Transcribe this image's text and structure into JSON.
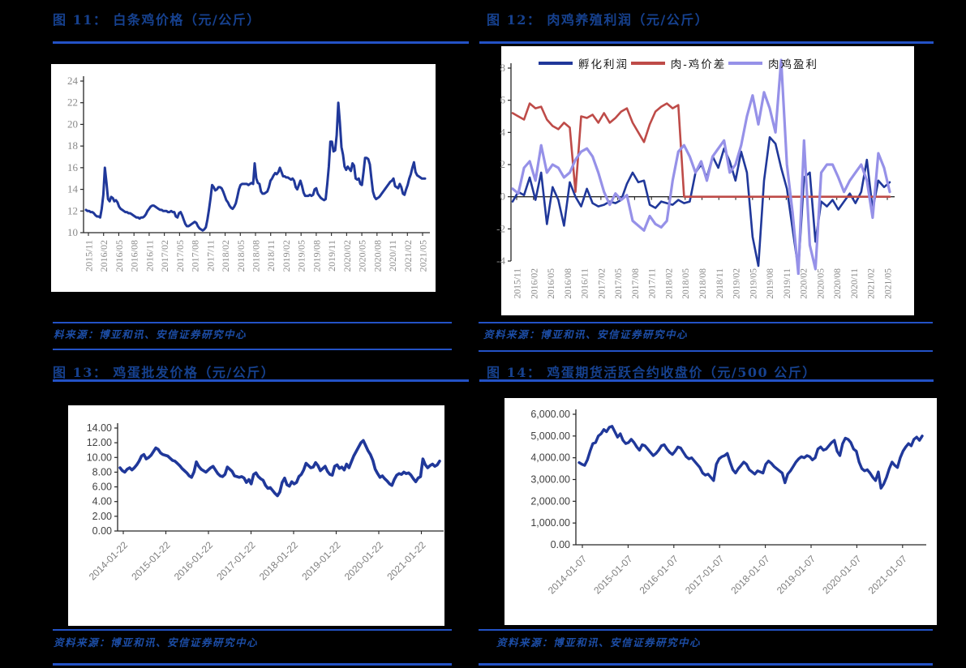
{
  "page": {
    "background": "#000000"
  },
  "colors": {
    "rule_blue": "#2352c6",
    "title_blue": "#16418f",
    "source_blue": "#1c4da6",
    "line_navy": "#20389A",
    "line_red": "#BE4B48",
    "line_purple": "#9691E8",
    "axis_line": "#262626",
    "serif_label_gray": "#8a8a8a",
    "sans_label_dark": "#404040",
    "sans_label_gray": "#7f7f7f"
  },
  "figures": [
    {
      "title": "图 11： 白条鸡价格（元/公斤）",
      "source": "料来源：博亚和讯、安信证券研究中心"
    },
    {
      "title": "图 12： 肉鸡养殖利润（元/公斤）",
      "source": "资料来源：博亚和讯、安信证券研究中心"
    },
    {
      "title": "图 13： 鸡蛋批发价格（元/公斤）",
      "source": "资料来源：博亚和讯、安信证券研究中心"
    },
    {
      "title": "图 14： 鸡蛋期货活跃合约收盘价（元/500 公斤）",
      "source": "资料来源：博亚和讯、安信证券研究中心"
    }
  ],
  "chart_data": [
    {
      "type": "line",
      "title": "白条鸡价格（元/公斤）",
      "ylim": [
        10,
        24
      ],
      "y_ticks": [
        "24",
        "22",
        "20",
        "18",
        "16",
        "14",
        "12",
        "10"
      ],
      "x_labels": [
        "2015/11",
        "2016/02",
        "2016/05",
        "2016/08",
        "2016/11",
        "2017/02",
        "2017/05",
        "2017/08",
        "2017/11",
        "2018/02",
        "2018/05",
        "2018/08",
        "2018/11",
        "2019/02",
        "2019/05",
        "2019/08",
        "2019/11",
        "2020/02",
        "2020/05",
        "2020/08",
        "2020/11",
        "2021/02",
        "2021/05"
      ],
      "ycol": "#8a8a8a",
      "xcol": "#8a8a8a",
      "legend_position": "none",
      "grid": false,
      "series": [
        {
          "name": "白条鸡价格",
          "color": "#20389A",
          "width": 3,
          "values": [
            12.1,
            12,
            12,
            11.9,
            11.9,
            11.8,
            11.6,
            11.5,
            11.5,
            11.4,
            12.2,
            13.5,
            16,
            14.6,
            13.1,
            12.9,
            13.3,
            13.2,
            12.9,
            13,
            12.8,
            12.4,
            12.2,
            12.1,
            12,
            11.9,
            11.9,
            11.8,
            11.8,
            11.7,
            11.6,
            11.5,
            11.4,
            11.4,
            11.3,
            11.4,
            11.4,
            11.5,
            11.7,
            12,
            12.2,
            12.4,
            12.5,
            12.5,
            12.4,
            12.3,
            12.2,
            12.1,
            12.1,
            12,
            12,
            12,
            11.9,
            11.9,
            12,
            11.9,
            11.9,
            11.5,
            11.4,
            11.8,
            11.9,
            11.6,
            11.2,
            10.8,
            10.6,
            10.6,
            10.7,
            10.8,
            10.9,
            11,
            10.9,
            10.6,
            10.4,
            10.3,
            10.2,
            10.3,
            10.5,
            11.2,
            12.1,
            13.2,
            14.4,
            14.2,
            13.9,
            14,
            14.2,
            14.2,
            14.1,
            13.8,
            13.4,
            13,
            12.8,
            12.5,
            12.3,
            12.2,
            12.4,
            12.7,
            13.3,
            14,
            14.4,
            14.5,
            14.5,
            14.5,
            14.5,
            14.4,
            14.5,
            14.6,
            14.5,
            16.4,
            15,
            14.6,
            14.5,
            13.8,
            13.6,
            13.6,
            13.7,
            13.8,
            14.2,
            14.8,
            15,
            15.3,
            15.5,
            15.4,
            15.6,
            16,
            15.6,
            15.2,
            15.2,
            15.1,
            15.1,
            15,
            14.9,
            15,
            14.8,
            14.2,
            14,
            14.4,
            14.8,
            14.3,
            13.7,
            13.4,
            13.4,
            13.4,
            13.5,
            13.4,
            13.5,
            14,
            14.1,
            13.6,
            13.4,
            13.2,
            13.1,
            13,
            13.1,
            14.5,
            16.1,
            18.4,
            18.4,
            17.5,
            17.6,
            19,
            22,
            20.2,
            17.9,
            17.2,
            16.1,
            15.8,
            16.1,
            15.9,
            15.7,
            16.4,
            16.2,
            15,
            14.9,
            15,
            14.5,
            14.4,
            15.6,
            16.9,
            16.9,
            16.8,
            16.3,
            15,
            13.8,
            13.3,
            13.1,
            13.2,
            13.3,
            13.5,
            13.7,
            13.9,
            14.1,
            14.3,
            14.5,
            14.7,
            14.8,
            15,
            14.3,
            14.2,
            14.1,
            14.5,
            14.2,
            13.6,
            13.5,
            14,
            14.4,
            15,
            15.4,
            16,
            16.5,
            15.6,
            15.3,
            15.2,
            15.1,
            15,
            15,
            15
          ]
        }
      ]
    },
    {
      "type": "line",
      "title": "肉鸡养殖利润（元/公斤）",
      "ylim": [
        -4,
        8
      ],
      "axis_at": 0,
      "y_ticks": [
        "8",
        "6",
        "4",
        "2",
        "0",
        "-2",
        "-4"
      ],
      "x_labels": [
        "2015/11",
        "2016/02",
        "2016/05",
        "2016/08",
        "2016/11",
        "2017/02",
        "2017/05",
        "2017/08",
        "2017/11",
        "2018/02",
        "2018/05",
        "2018/08",
        "2018/11",
        "2019/02",
        "2019/05",
        "2019/08",
        "2019/11",
        "2020/02",
        "2020/05",
        "2020/08",
        "2020/11",
        "2021/02",
        "2021/05"
      ],
      "ycol": "#8a8a8a",
      "xcol": "#8a8a8a",
      "legend_position": "top",
      "grid": false,
      "series": [
        {
          "name": "孵化利润",
          "color": "#20389A",
          "width": 2.6,
          "values": [
            -0.3,
            0.3,
            0.1,
            1.2,
            -0.2,
            1.5,
            -1.7,
            0.6,
            -0.2,
            -1.8,
            0.9,
            0,
            -0.6,
            0.5,
            -0.4,
            -0.6,
            -0.5,
            -0.3,
            -0.4,
            -0.2,
            0.8,
            1.5,
            0.9,
            1,
            -0.5,
            -0.7,
            -0.3,
            -0.4,
            -0.5,
            -0.2,
            -0.4,
            -0.3,
            1.5,
            2,
            1.2,
            2.5,
            1.8,
            3,
            2.2,
            1,
            2.8,
            1.5,
            -2.5,
            -4.3,
            1,
            3.7,
            3.3,
            1.8,
            0.5,
            -2,
            -4.5,
            1.2,
            1.5,
            -2.8,
            -0.3,
            -0.6,
            -0.2,
            -0.8,
            -0.3,
            0.2,
            -0.4,
            0.3,
            2.3,
            -0.8,
            1,
            0.6,
            0.9
          ]
        },
        {
          "name": "肉-鸡价差",
          "color": "#BE4B48",
          "width": 2.6,
          "values": [
            5.2,
            5,
            4.8,
            5.8,
            5.5,
            5.6,
            4.8,
            4.4,
            4.2,
            4.6,
            4.3,
            0.3,
            5,
            4.9,
            5.1,
            4.6,
            5.2,
            4.6,
            4.9,
            5.3,
            5.5,
            4.6,
            4,
            3.4,
            4.5,
            5.3,
            5.6,
            5.8,
            5.5,
            5.7,
            0,
            0,
            0,
            0,
            0,
            0,
            0,
            0,
            0,
            0,
            0,
            0,
            0,
            0,
            0,
            0,
            0,
            0,
            0,
            0,
            0,
            0,
            0,
            0,
            0,
            0,
            0,
            0,
            0,
            0,
            0,
            0,
            0,
            0,
            0,
            0,
            0
          ]
        },
        {
          "name": "肉鸡盈利",
          "color": "#9691E8",
          "width": 3.2,
          "values": [
            0.5,
            0.2,
            1.8,
            2.2,
            1,
            3.2,
            1.5,
            2,
            1.8,
            1.2,
            1.5,
            2.3,
            2.8,
            3,
            2.5,
            1.5,
            0.3,
            -0.5,
            0.2,
            -0.2,
            0.1,
            -1.5,
            -1.8,
            -2.1,
            -1.2,
            -1.7,
            -1.9,
            -1.5,
            1,
            2.8,
            3.2,
            2.5,
            1.5,
            2.2,
            1,
            2.5,
            3,
            3.5,
            1.5,
            2,
            3.2,
            5,
            6.3,
            4.5,
            6.5,
            5.5,
            4,
            8.5,
            2,
            -1,
            -4.8,
            3.5,
            -3,
            -4.5,
            1.5,
            2,
            2,
            1.2,
            0.3,
            1,
            1.5,
            2,
            1,
            -1.3,
            2.7,
            1.8,
            0.3
          ]
        }
      ]
    },
    {
      "type": "line",
      "title": "鸡蛋批发价格（元/公斤）",
      "ylim": [
        0,
        14
      ],
      "y_ticks": [
        "14.00",
        "12.00",
        "10.00",
        "8.00",
        "6.00",
        "4.00",
        "2.00",
        "0.00"
      ],
      "x_labels": [
        "2014-01-22",
        "2015-01-22",
        "2016-01-22",
        "2017-01-22",
        "2018-01-22",
        "2019-01-22",
        "2020-01-22",
        "2021-01-22"
      ],
      "ycol": "#404040",
      "xcol": "#7f7f7f",
      "legend_position": "none",
      "grid": false,
      "series": [
        {
          "name": "鸡蛋批发价格",
          "color": "#20389A",
          "width": 3.6,
          "values": [
            8.6,
            8.2,
            8,
            8.4,
            8.6,
            8.3,
            8.6,
            9,
            9.5,
            10.2,
            10.4,
            9.8,
            10,
            10.3,
            10.8,
            11.3,
            11.1,
            10.6,
            10.4,
            10.3,
            10.2,
            9.9,
            9.6,
            9.5,
            9.2,
            8.9,
            8.5,
            8.2,
            7.9,
            7.5,
            7.3,
            8,
            9.4,
            8.8,
            8.4,
            8.2,
            8,
            8.3,
            8.6,
            8.8,
            8.3,
            7.8,
            7.5,
            7.4,
            7.7,
            8.7,
            8.4,
            8.1,
            7.5,
            7.4,
            7.3,
            7.4,
            7.2,
            6.6,
            7,
            6.4,
            7.7,
            7.9,
            7.4,
            7.1,
            6.9,
            6.2,
            5.8,
            5.9,
            5.5,
            5.1,
            4.8,
            5.3,
            6.6,
            7.2,
            6.3,
            6.1,
            6.7,
            6.4,
            6.6,
            7.4,
            7.7,
            8.3,
            9.2,
            8.9,
            8.6,
            8.7,
            9.3,
            8.9,
            8.2,
            8.5,
            8.8,
            8.1,
            7.7,
            7.6,
            8.8,
            9,
            8.5,
            8.7,
            8.3,
            9.1,
            8.6,
            9.4,
            10.2,
            10.8,
            11.4,
            12,
            12.3,
            11.6,
            10.9,
            10.4,
            9.6,
            8.4,
            7.8,
            7.3,
            7.5,
            7.1,
            6.8,
            6.4,
            6.2,
            7,
            7.6,
            7.8,
            7.7,
            8,
            7.8,
            7.9,
            7.6,
            7.1,
            6.7,
            7.2,
            7.4,
            9.8,
            9,
            8.6,
            8.9,
            9.1,
            8.8,
            9,
            9.5
          ]
        }
      ]
    },
    {
      "type": "line",
      "title": "鸡蛋期货活跃合约收盘价（元/500 公斤）",
      "ylim": [
        0,
        6000
      ],
      "y_ticks": [
        "6,000.00",
        "5,000.00",
        "4,000.00",
        "3,000.00",
        "2,000.00",
        "1,000.00",
        "0.00"
      ],
      "x_labels": [
        "2014-01-07",
        "2015-01-07",
        "2016-01-07",
        "2017-01-07",
        "2018-01-07",
        "2019-01-07",
        "2020-01-07",
        "2021-01-07"
      ],
      "ycol": "#404040",
      "xcol": "#7f7f7f",
      "legend_position": "none",
      "grid": false,
      "series": [
        {
          "name": "鸡蛋期货活跃合约收盘价",
          "color": "#20389A",
          "width": 3.4,
          "values": [
            3780,
            3700,
            3650,
            3900,
            4300,
            4650,
            4700,
            5000,
            5100,
            5300,
            5200,
            5400,
            5450,
            5200,
            4950,
            5100,
            4800,
            4650,
            4700,
            4850,
            4700,
            4500,
            4350,
            4600,
            4550,
            4400,
            4250,
            4100,
            4200,
            4350,
            4550,
            4600,
            4400,
            4250,
            4150,
            4300,
            4500,
            4450,
            4250,
            4050,
            3950,
            4000,
            3850,
            3700,
            3550,
            3300,
            3200,
            3250,
            3100,
            2950,
            3700,
            3950,
            4050,
            4100,
            4200,
            3800,
            3450,
            3300,
            3500,
            3650,
            3800,
            3700,
            3450,
            3350,
            3250,
            3400,
            3350,
            3300,
            3700,
            3850,
            3750,
            3600,
            3500,
            3400,
            3300,
            2850,
            3250,
            3400,
            3600,
            3800,
            3950,
            4050,
            4000,
            4100,
            4050,
            3900,
            4000,
            4400,
            4500,
            4350,
            4400,
            4550,
            4700,
            4800,
            4300,
            4100,
            4650,
            4900,
            4850,
            4700,
            4400,
            4300,
            3800,
            3500,
            3400,
            3450,
            3300,
            3100,
            2950,
            3350,
            2600,
            2800,
            3100,
            3500,
            3800,
            3650,
            3550,
            4000,
            4300,
            4500,
            4650,
            4550,
            4850,
            4950,
            4800,
            5000
          ]
        }
      ]
    }
  ]
}
